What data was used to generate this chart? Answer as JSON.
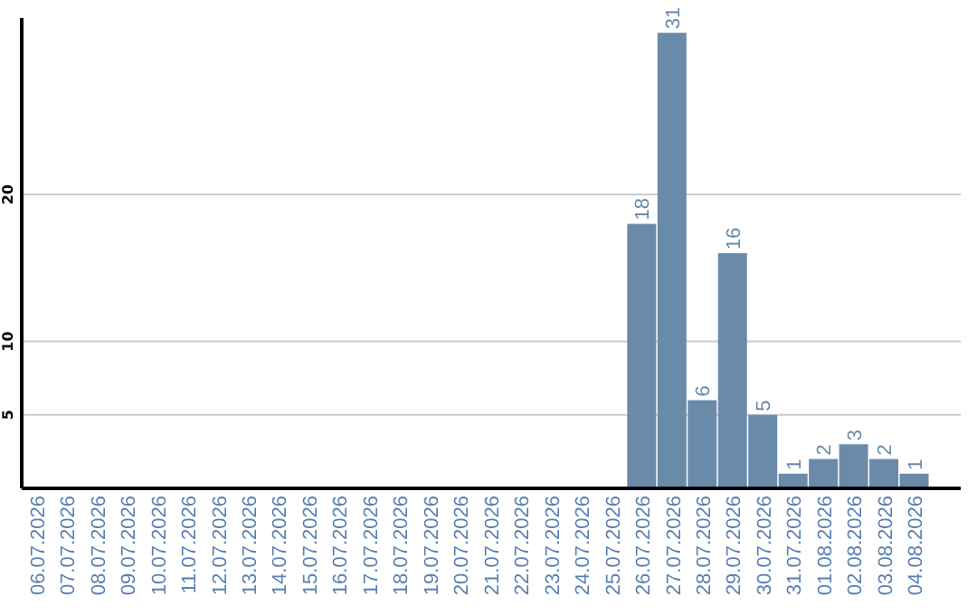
{
  "chart_data": {
    "type": "bar",
    "categories": [
      "06.07.2026",
      "07.07.2026",
      "08.07.2026",
      "09.07.2026",
      "10.07.2026",
      "11.07.2026",
      "12.07.2026",
      "13.07.2026",
      "14.07.2026",
      "15.07.2026",
      "16.07.2026",
      "17.07.2026",
      "18.07.2026",
      "19.07.2026",
      "20.07.2026",
      "21.07.2026",
      "22.07.2026",
      "23.07.2026",
      "24.07.2026",
      "25.07.2026",
      "26.07.2026",
      "27.07.2026",
      "28.07.2026",
      "29.07.2026",
      "30.07.2026",
      "31.07.2026",
      "01.08.2026",
      "02.08.2026",
      "03.08.2026",
      "04.08.2026"
    ],
    "values": [
      0,
      0,
      0,
      0,
      0,
      0,
      0,
      0,
      0,
      0,
      0,
      0,
      0,
      0,
      0,
      0,
      0,
      0,
      0,
      0,
      18,
      31,
      6,
      16,
      5,
      1,
      2,
      3,
      2,
      1
    ],
    "value_labels": [
      null,
      null,
      null,
      null,
      null,
      null,
      null,
      null,
      null,
      null,
      null,
      null,
      null,
      null,
      null,
      null,
      null,
      null,
      null,
      null,
      "18",
      "31",
      "6",
      "16",
      "5",
      "1",
      "2",
      "3",
      "2",
      "1"
    ],
    "color": "#6a8aaa",
    "ylim": [
      0,
      32
    ],
    "yticks": [
      5,
      10,
      20
    ],
    "grid": "y",
    "legend": false
  }
}
